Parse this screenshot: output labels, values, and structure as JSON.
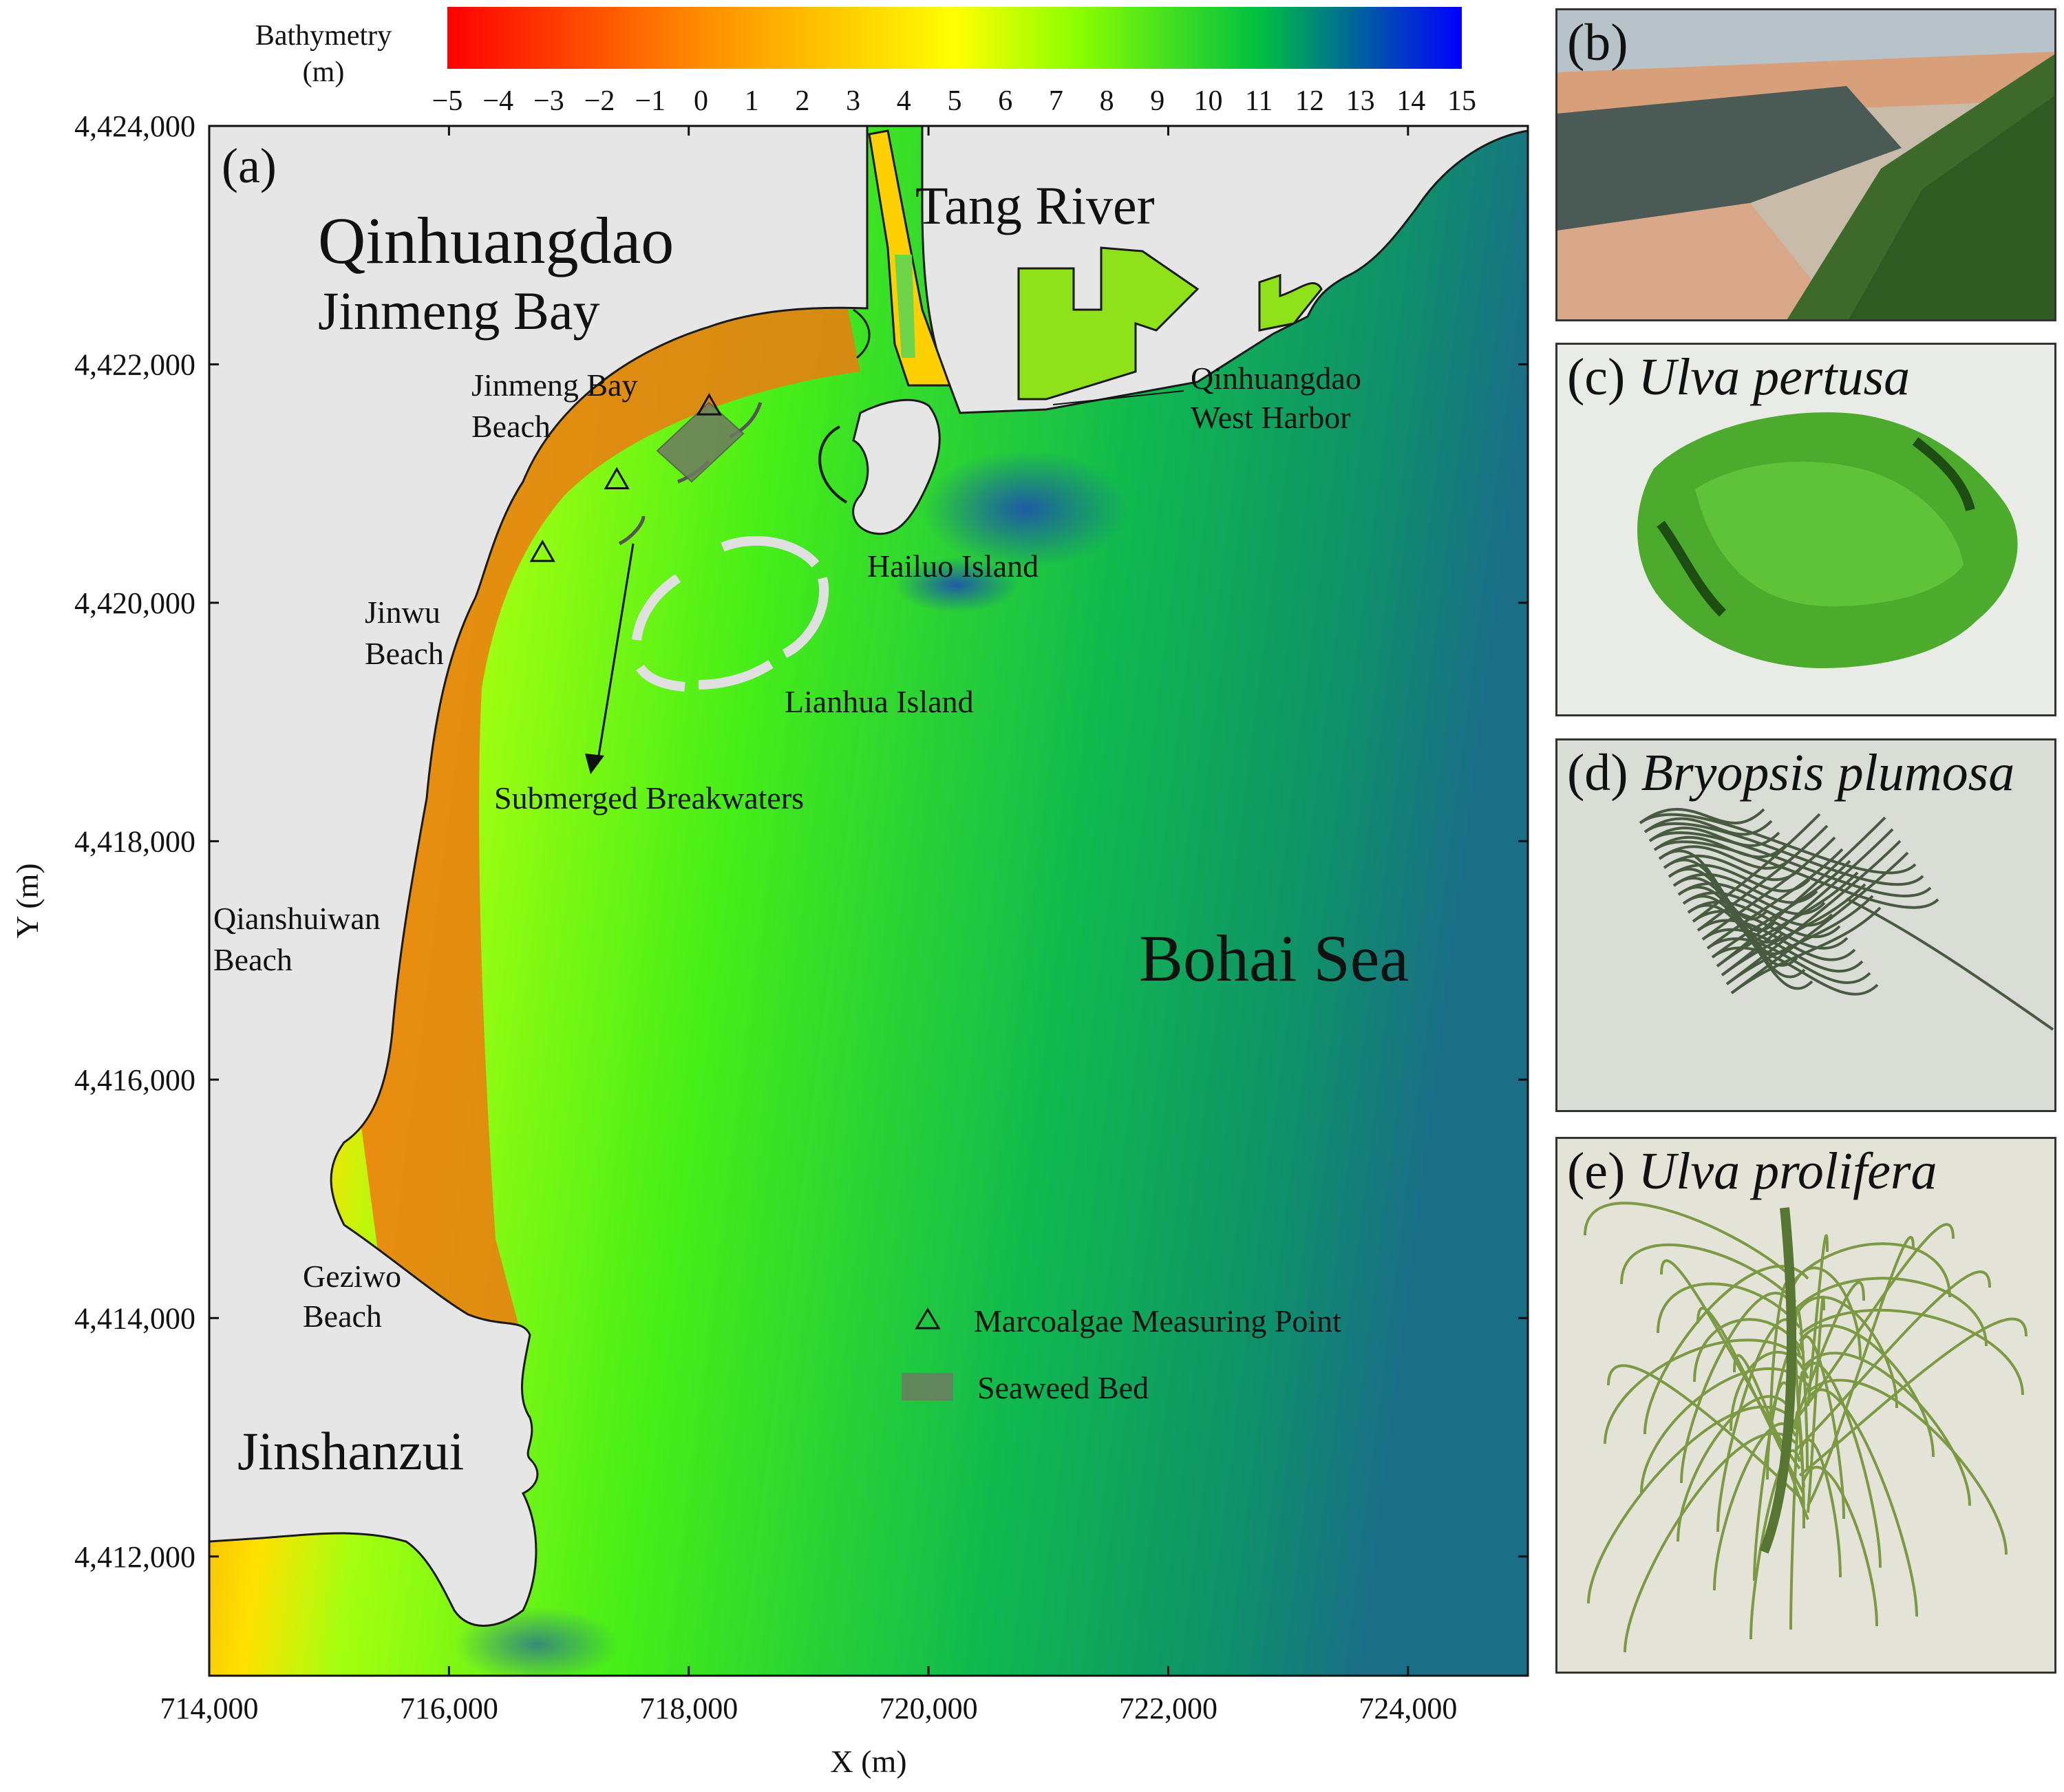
{
  "colorbar": {
    "title_line1": "Bathymetry",
    "title_line2": "(m)",
    "ticks": [
      "−5",
      "−4",
      "−3",
      "−2",
      "−1",
      "0",
      "1",
      "2",
      "3",
      "4",
      "5",
      "6",
      "7",
      "8",
      "9",
      "10",
      "11",
      "12",
      "13",
      "14",
      "15"
    ],
    "range": [
      -5,
      15
    ],
    "colors": [
      "#ff0000",
      "#ff7a00",
      "#ffff00",
      "#66ff00",
      "#00c040",
      "#0000ff"
    ]
  },
  "map": {
    "panel_label": "(a)",
    "xlabel": "X (m)",
    "ylabel": "Y (m)",
    "xticks": [
      "714,000",
      "716,000",
      "718,000",
      "720,000",
      "722,000",
      "724,000"
    ],
    "yticks": [
      "4,424,000",
      "4,422,000",
      "4,420,000",
      "4,418,000",
      "4,416,000",
      "4,414,000",
      "4,412,000"
    ],
    "xlim": [
      714000,
      725000
    ],
    "ylim": [
      4411000,
      4424000
    ],
    "place_labels": {
      "qinhuangdao": "Qinhuangdao",
      "jinmeng_bay": "Jinmeng Bay",
      "tang_river": "Tang River",
      "jinmeng_bay_beach_1": "Jinmeng Bay",
      "jinmeng_bay_beach_2": "Beach",
      "west_harbor_1": "Qinhuangdao",
      "west_harbor_2": "West Harbor",
      "hailuo_island": "Hailuo Island",
      "jinwu_beach_1": "Jinwu",
      "jinwu_beach_2": "Beach",
      "lianhua_island": "Lianhua Island",
      "submerged_breakwaters": "Submerged Breakwaters",
      "qianshuiwan_1": "Qianshuiwan",
      "qianshuiwan_2": "Beach",
      "bohai_sea": "Bohai Sea",
      "geziwo_1": "Geziwo",
      "geziwo_2": "Beach",
      "jinshanzui": "Jinshanzui"
    },
    "legend": {
      "measuring_point": "Marcoalgae Measuring Point",
      "seaweed_bed": "Seaweed Bed"
    },
    "measuring_points": [
      {
        "x": 718170,
        "y": 4421650
      },
      {
        "x": 717400,
        "y": 4421030
      },
      {
        "x": 716780,
        "y": 4420420
      }
    ],
    "colors": {
      "land": "#e6e6e6",
      "seaweed_bed": "#6f7a62",
      "outline": "#1a1a1a"
    }
  },
  "photos": {
    "b": {
      "label": "(b)"
    },
    "c": {
      "label": "(c) ",
      "species": "Ulva pertusa"
    },
    "d": {
      "label": "(d) ",
      "species": "Bryopsis plumosa"
    },
    "e": {
      "label": "(e) ",
      "species": "Ulva prolifera"
    }
  }
}
